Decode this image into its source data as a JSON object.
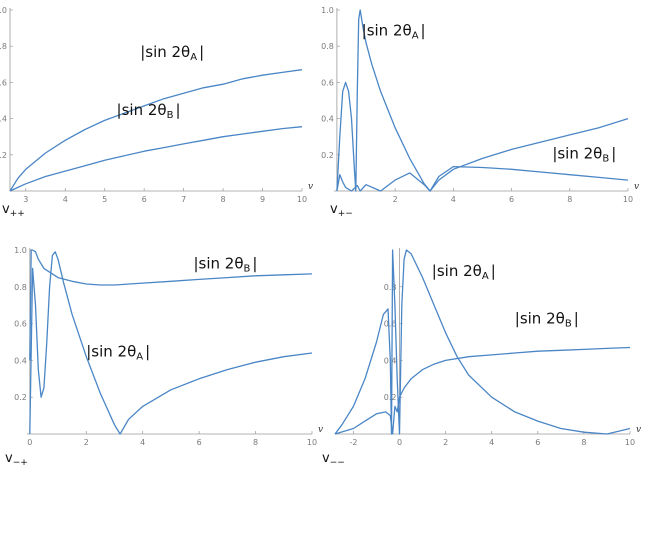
{
  "chart_data": [
    {
      "type": "line",
      "panel_label": "v",
      "panel_label_sub": "++",
      "xlabel": "v",
      "xlim": [
        2.6,
        10
      ],
      "ylim": [
        0,
        1
      ],
      "x_axis_at_y": 0,
      "y_axis_at_x": 2.6,
      "xticks": [
        3,
        4,
        5,
        6,
        7,
        8,
        9,
        10
      ],
      "yticks": [
        0.2,
        0.4,
        0.6,
        0.8,
        1.0
      ],
      "ytick_labels": [
        "0.2",
        "0.4",
        "0.6",
        "0.8",
        "1.0"
      ],
      "series": [
        {
          "name": "|sin 2θ_A|",
          "label_main": "|sin 2θ",
          "label_sub": "A",
          "label_end": "|",
          "label_at": [
            5.9,
            0.74
          ],
          "x": [
            2.6,
            2.8,
            3.0,
            3.5,
            4.0,
            4.5,
            5.0,
            5.5,
            6.0,
            6.5,
            7.0,
            7.5,
            8.0,
            8.5,
            9.0,
            9.5,
            10.0
          ],
          "y": [
            0.0,
            0.07,
            0.12,
            0.21,
            0.28,
            0.34,
            0.39,
            0.43,
            0.47,
            0.51,
            0.54,
            0.57,
            0.59,
            0.62,
            0.64,
            0.655,
            0.67
          ]
        },
        {
          "name": "|sin 2θ_B|",
          "label_main": "|sin 2θ",
          "label_sub": "B",
          "label_end": "|",
          "label_at": [
            5.3,
            0.42
          ],
          "x": [
            2.6,
            2.8,
            3.0,
            3.5,
            4.0,
            4.5,
            5.0,
            5.5,
            6.0,
            6.5,
            7.0,
            7.5,
            8.0,
            8.5,
            9.0,
            9.5,
            10.0
          ],
          "y": [
            0.0,
            0.02,
            0.04,
            0.08,
            0.11,
            0.14,
            0.17,
            0.195,
            0.22,
            0.24,
            0.26,
            0.28,
            0.3,
            0.315,
            0.33,
            0.345,
            0.355
          ]
        }
      ]
    },
    {
      "type": "line",
      "panel_label": "v",
      "panel_label_sub": "+−",
      "xlabel": "v",
      "xlim": [
        -0.1,
        10
      ],
      "ylim": [
        0,
        1
      ],
      "x_axis_at_y": 0,
      "y_axis_at_x": 0,
      "xticks": [
        2,
        4,
        6,
        8,
        10
      ],
      "yticks": [
        0.2,
        0.4,
        0.6,
        0.8,
        1.0
      ],
      "ytick_labels": [
        "0.2",
        "0.4",
        "0.6",
        "0.8",
        "1.0"
      ],
      "series": [
        {
          "name": "|sin 2θ_A|",
          "label_main": "|sin 2θ",
          "label_sub": "A",
          "label_end": "|",
          "label_at": [
            0.85,
            0.86
          ],
          "x": [
            0.0,
            0.1,
            0.2,
            0.3,
            0.4,
            0.5,
            0.6,
            0.65,
            0.7,
            0.75,
            0.8,
            0.9,
            1.0,
            1.2,
            1.5,
            2.0,
            2.5,
            3.0,
            3.2,
            3.5,
            4.0,
            5.0,
            6.0,
            7.0,
            8.0,
            9.0,
            10.0
          ],
          "y": [
            0.0,
            0.3,
            0.55,
            0.6,
            0.55,
            0.4,
            0.12,
            0.0,
            0.55,
            0.95,
            1.0,
            0.9,
            0.82,
            0.7,
            0.55,
            0.35,
            0.18,
            0.04,
            0.0,
            0.08,
            0.135,
            0.13,
            0.12,
            0.105,
            0.09,
            0.075,
            0.06
          ]
        },
        {
          "name": "|sin 2θ_B|",
          "label_main": "|sin 2θ",
          "label_sub": "B",
          "label_end": "|",
          "label_at": [
            7.4,
            0.18
          ],
          "x": [
            0.0,
            0.1,
            0.2,
            0.3,
            0.5,
            0.7,
            0.8,
            1.0,
            1.5,
            2.0,
            2.5,
            3.0,
            3.2,
            3.5,
            4.0,
            5.0,
            6.0,
            7.0,
            8.0,
            9.0,
            10.0
          ],
          "y": [
            0.0,
            0.09,
            0.05,
            0.02,
            0.0,
            0.03,
            0.0,
            0.035,
            0.0,
            0.06,
            0.1,
            0.035,
            0.0,
            0.06,
            0.12,
            0.18,
            0.23,
            0.27,
            0.31,
            0.35,
            0.4
          ]
        }
      ]
    },
    {
      "type": "line",
      "panel_label": "v",
      "panel_label_sub": "−+",
      "xlabel": "v",
      "xlim": [
        -0.1,
        10
      ],
      "ylim": [
        0,
        1
      ],
      "x_axis_at_y": 0,
      "y_axis_at_x": 0,
      "xticks": [
        0,
        2,
        4,
        6,
        8,
        10
      ],
      "yticks": [
        0.2,
        0.4,
        0.6,
        0.8,
        1.0
      ],
      "ytick_labels": [
        "0.2",
        "0.4",
        "0.6",
        "0.8",
        "1.0"
      ],
      "series": [
        {
          "name": "|sin 2θ_A|",
          "label_main": "|sin 2θ",
          "label_sub": "A",
          "label_end": "|",
          "label_at": [
            2.0,
            0.42
          ],
          "x": [
            0.0,
            0.1,
            0.2,
            0.3,
            0.4,
            0.5,
            0.6,
            0.7,
            0.8,
            0.9,
            1.0,
            1.2,
            1.5,
            2.0,
            2.5,
            3.0,
            3.2,
            3.5,
            4.0,
            5.0,
            6.0,
            7.0,
            8.0,
            9.0,
            10.0
          ],
          "y": [
            0.0,
            0.9,
            0.7,
            0.35,
            0.2,
            0.25,
            0.5,
            0.8,
            0.97,
            0.99,
            0.95,
            0.82,
            0.65,
            0.42,
            0.22,
            0.05,
            0.0,
            0.08,
            0.15,
            0.24,
            0.3,
            0.35,
            0.39,
            0.42,
            0.44
          ]
        },
        {
          "name": "|sin 2θ_B|",
          "label_main": "|sin 2θ",
          "label_sub": "B",
          "label_end": "|",
          "label_at": [
            5.8,
            0.9
          ],
          "x": [
            0.0,
            0.05,
            0.1,
            0.2,
            0.3,
            0.5,
            0.8,
            1.0,
            1.5,
            2.0,
            2.5,
            3.0,
            4.0,
            5.0,
            6.0,
            7.0,
            8.0,
            9.0,
            10.0
          ],
          "y": [
            0.4,
            1.0,
            1.0,
            0.99,
            0.95,
            0.9,
            0.87,
            0.85,
            0.83,
            0.815,
            0.81,
            0.81,
            0.82,
            0.83,
            0.84,
            0.85,
            0.86,
            0.865,
            0.87
          ]
        }
      ]
    },
    {
      "type": "line",
      "panel_label": "v",
      "panel_label_sub": "−−",
      "xlabel": "v",
      "xlim": [
        -2.8,
        10
      ],
      "ylim": [
        0,
        1
      ],
      "x_axis_at_y": 0,
      "y_axis_at_x": 0,
      "xticks": [
        -2,
        0,
        2,
        4,
        6,
        8,
        10
      ],
      "yticks": [
        0.2,
        0.4,
        0.6,
        0.8
      ],
      "ytick_labels": [
        "0.2",
        "0.4",
        "0.6",
        "0.8"
      ],
      "series": [
        {
          "name": "|sin 2θ_A|",
          "label_main": "|sin 2θ",
          "label_sub": "A",
          "label_end": "|",
          "label_at": [
            1.4,
            0.86
          ],
          "x": [
            -2.8,
            -2.5,
            -2.0,
            -1.5,
            -1.0,
            -0.7,
            -0.5,
            -0.4,
            -0.35,
            -0.3,
            -0.2,
            -0.1,
            0.0,
            0.1,
            0.2,
            0.3,
            0.5,
            1.0,
            1.5,
            2.0,
            2.5,
            3.0,
            4.0,
            5.0,
            6.0,
            7.0,
            8.0,
            9.0,
            10.0
          ],
          "y": [
            0.0,
            0.05,
            0.15,
            0.3,
            0.5,
            0.65,
            0.68,
            0.4,
            0.0,
            1.0,
            0.7,
            0.3,
            0.0,
            0.7,
            0.95,
            1.0,
            0.98,
            0.85,
            0.7,
            0.55,
            0.42,
            0.32,
            0.2,
            0.12,
            0.07,
            0.03,
            0.01,
            0.0,
            0.03
          ]
        },
        {
          "name": "|sin 2θ_B|",
          "label_main": "|sin 2θ",
          "label_sub": "B",
          "label_end": "|",
          "label_at": [
            5.0,
            0.6
          ],
          "x": [
            -2.8,
            -2.0,
            -1.5,
            -1.0,
            -0.6,
            -0.4,
            -0.3,
            -0.2,
            -0.1,
            0.0,
            0.2,
            0.5,
            1.0,
            1.5,
            2.0,
            3.0,
            4.0,
            5.0,
            6.0,
            7.0,
            8.0,
            9.0,
            10.0
          ],
          "y": [
            0.0,
            0.03,
            0.07,
            0.11,
            0.12,
            0.1,
            0.0,
            0.15,
            0.12,
            0.2,
            0.25,
            0.3,
            0.35,
            0.38,
            0.4,
            0.42,
            0.43,
            0.44,
            0.45,
            0.455,
            0.46,
            0.465,
            0.47
          ]
        }
      ]
    }
  ]
}
